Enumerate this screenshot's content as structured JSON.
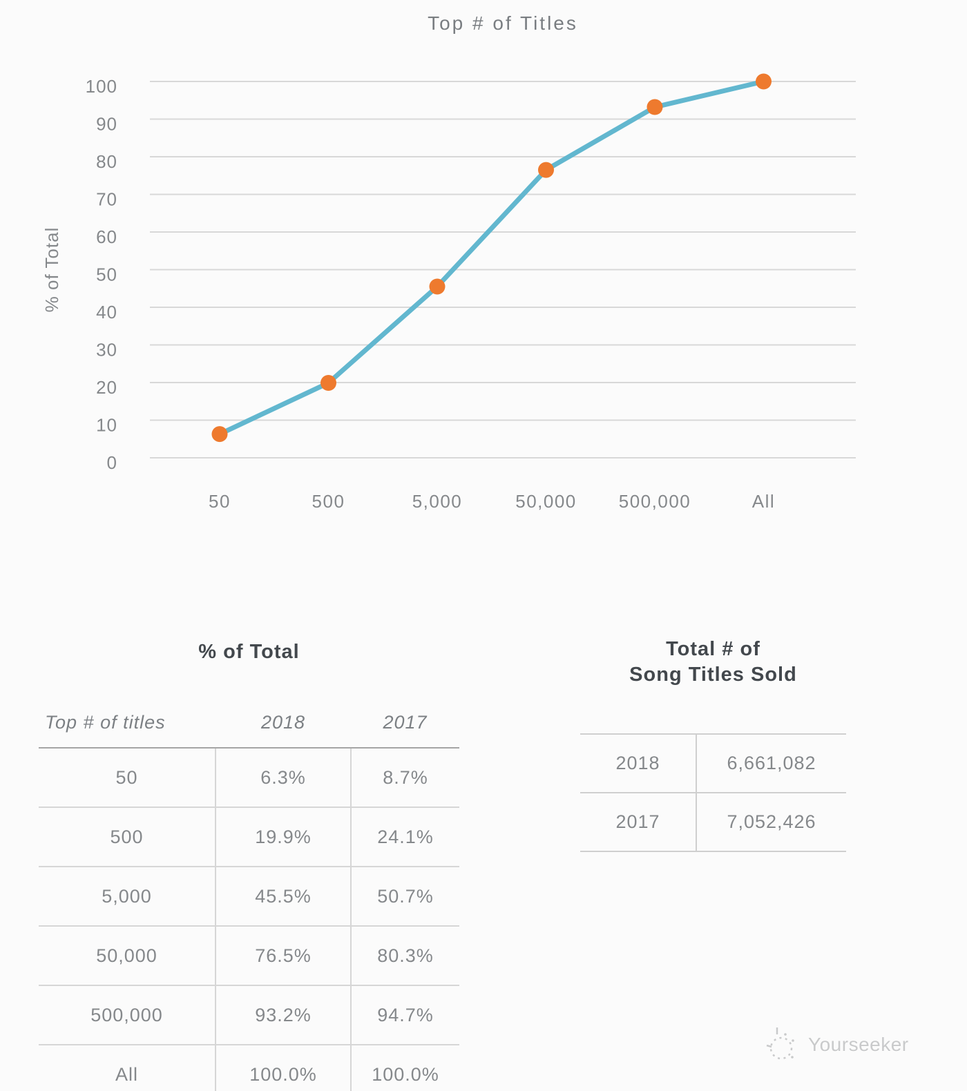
{
  "chart_data": {
    "type": "line",
    "title": "Top # of Titles",
    "xlabel": "",
    "ylabel": "% of Total",
    "categories": [
      "50",
      "500",
      "5,000",
      "50,000",
      "500,000",
      "All"
    ],
    "series": [
      {
        "name": "2018",
        "values": [
          6.3,
          19.9,
          45.5,
          76.5,
          93.2,
          100.0
        ]
      }
    ],
    "ylim": [
      0,
      100
    ],
    "yticks": [
      100,
      90,
      80,
      70,
      60,
      50,
      40,
      30,
      20,
      10,
      0
    ],
    "grid": true,
    "legend": false,
    "line_color": "#62b7cf",
    "marker_color": "#ee7a2e",
    "gridline_color": "#d8d8d8",
    "axis_text_color": "#85888b"
  },
  "tables": {
    "percent": {
      "title": "% of Total",
      "columns": [
        "Top # of titles",
        "2018",
        "2017"
      ],
      "rows": [
        [
          "50",
          "6.3%",
          "8.7%"
        ],
        [
          "500",
          "19.9%",
          "24.1%"
        ],
        [
          "5,000",
          "45.5%",
          "50.7%"
        ],
        [
          "50,000",
          "76.5%",
          "80.3%"
        ],
        [
          "500,000",
          "93.2%",
          "94.7%"
        ],
        [
          "All",
          "100.0%",
          "100.0%"
        ]
      ]
    },
    "totals": {
      "title_line1": "Total # of",
      "title_line2": "Song Titles Sold",
      "rows": [
        [
          "2018",
          "6,661,082"
        ],
        [
          "2017",
          "7,052,426"
        ]
      ]
    }
  },
  "watermark": {
    "text": "Yourseeker"
  }
}
